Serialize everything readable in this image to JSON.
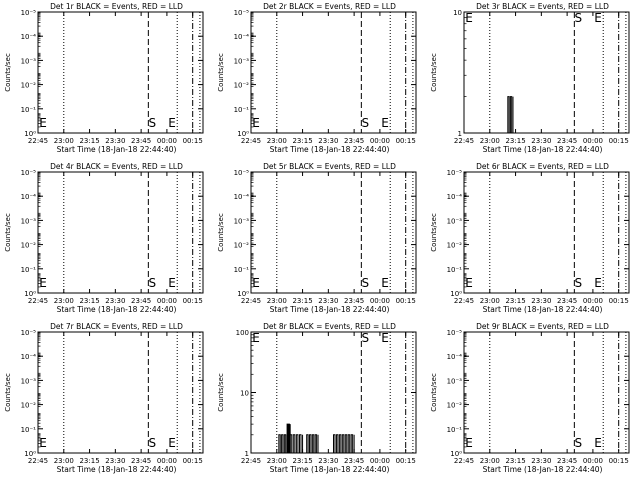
{
  "x_tick_labels": [
    "22:45",
    "23:00",
    "23:15",
    "23:30",
    "23:45",
    "00:00",
    "00:15"
  ],
  "x_axis_label": "Start Time (18-Jan-18 22:44:40)",
  "y_axis_label": "Counts/sec",
  "marker_labels": {
    "start": "S",
    "end": "E",
    "edge": "E"
  },
  "chart_data": [
    {
      "type": "line",
      "title": "Det 1r BLACK = Events, RED = LLD",
      "scale": "log",
      "ytick_labels": [
        "10⁰",
        "10⁻¹",
        "10⁻²",
        "10⁻³",
        "10⁻⁴",
        "10⁻⁵"
      ],
      "ylim": [
        1e-06,
        1
      ],
      "series": []
    },
    {
      "type": "line",
      "title": "Det 2r BLACK = Events, RED = LLD",
      "scale": "log",
      "ytick_labels": [
        "10⁰",
        "10⁻¹",
        "10⁻²",
        "10⁻³",
        "10⁻⁴",
        "10⁻⁵"
      ],
      "ylim": [
        1e-06,
        1
      ],
      "series": []
    },
    {
      "type": "line",
      "title": "Det 3r BLACK = Events, RED = LLD",
      "scale": "log",
      "ytick_labels": [
        "1",
        "10"
      ],
      "ylim": [
        1,
        10
      ],
      "series": [
        {
          "bursts": [
            {
              "start": 23.175,
              "end": 23.225,
              "level": 2
            }
          ]
        }
      ]
    },
    {
      "type": "line",
      "title": "Det 4r BLACK = Events, RED = LLD",
      "scale": "log",
      "ytick_labels": [
        "10⁰",
        "10⁻¹",
        "10⁻²",
        "10⁻³",
        "10⁻⁴",
        "10⁻⁵"
      ],
      "ylim": [
        1e-06,
        1
      ],
      "series": []
    },
    {
      "type": "line",
      "title": "Det 5r BLACK = Events, RED = LLD",
      "scale": "log",
      "ytick_labels": [
        "10⁰",
        "10⁻¹",
        "10⁻²",
        "10⁻³",
        "10⁻⁴",
        "10⁻⁵"
      ],
      "ylim": [
        1e-06,
        1
      ],
      "series": []
    },
    {
      "type": "line",
      "title": "Det 6r BLACK = Events, RED = LLD",
      "scale": "log",
      "ytick_labels": [
        "10⁰",
        "10⁻¹",
        "10⁻²",
        "10⁻³",
        "10⁻⁴",
        "10⁻⁵"
      ],
      "ylim": [
        1e-06,
        1
      ],
      "series": []
    },
    {
      "type": "line",
      "title": "Det 7r BLACK = Events, RED = LLD",
      "scale": "log",
      "ytick_labels": [
        "10⁰",
        "10⁻¹",
        "10⁻²",
        "10⁻³",
        "10⁻⁴",
        "10⁻⁵"
      ],
      "ylim": [
        1e-06,
        1
      ],
      "series": []
    },
    {
      "type": "line",
      "title": "Det 8r BLACK = Events, RED = LLD",
      "scale": "log",
      "ytick_labels": [
        "1",
        "10",
        "100"
      ],
      "ylim": [
        1,
        100
      ],
      "series": [
        {
          "bursts": [
            {
              "start": 23.02,
              "end": 23.1,
              "level": 2
            },
            {
              "start": 23.1,
              "end": 23.13,
              "level": 3
            },
            {
              "start": 23.13,
              "end": 23.25,
              "level": 2
            },
            {
              "start": 23.25,
              "end": 23.29,
              "level": 1
            },
            {
              "start": 23.29,
              "end": 23.4,
              "level": 2
            },
            {
              "start": 23.55,
              "end": 23.75,
              "level": 2
            }
          ]
        }
      ]
    },
    {
      "type": "line",
      "title": "Det 9r BLACK = Events, RED = LLD",
      "scale": "log",
      "ytick_labels": [
        "10⁰",
        "10⁻¹",
        "10⁻²",
        "10⁻³",
        "10⁻⁴",
        "10⁻⁵"
      ],
      "ylim": [
        1e-06,
        1
      ],
      "series": []
    }
  ]
}
